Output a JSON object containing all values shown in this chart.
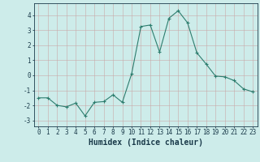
{
  "x": [
    0,
    1,
    2,
    3,
    4,
    5,
    6,
    7,
    8,
    9,
    10,
    11,
    12,
    13,
    14,
    15,
    16,
    17,
    18,
    19,
    20,
    21,
    22,
    23
  ],
  "y": [
    -1.5,
    -1.5,
    -2.0,
    -2.1,
    -1.85,
    -2.7,
    -1.8,
    -1.75,
    -1.3,
    -1.8,
    0.1,
    3.25,
    3.35,
    1.55,
    3.8,
    4.3,
    3.5,
    1.5,
    0.75,
    -0.05,
    -0.1,
    -0.35,
    -0.9,
    -1.1
  ],
  "line_color": "#2d7d6e",
  "marker_color": "#2d7d6e",
  "bg_color": "#cdecea",
  "grid_color_major": "#c8a8a8",
  "grid_color_minor": "#dfc8c8",
  "xlabel": "Humidex (Indice chaleur)",
  "xlim": [
    -0.5,
    23.5
  ],
  "ylim": [
    -3.4,
    4.8
  ],
  "yticks": [
    -3,
    -2,
    -1,
    0,
    1,
    2,
    3,
    4
  ],
  "xticks": [
    0,
    1,
    2,
    3,
    4,
    5,
    6,
    7,
    8,
    9,
    10,
    11,
    12,
    13,
    14,
    15,
    16,
    17,
    18,
    19,
    20,
    21,
    22,
    23
  ],
  "xtick_labels": [
    "0",
    "1",
    "2",
    "3",
    "4",
    "5",
    "6",
    "7",
    "8",
    "9",
    "10",
    "11",
    "12",
    "13",
    "14",
    "15",
    "16",
    "17",
    "18",
    "19",
    "20",
    "21",
    "22",
    "23"
  ],
  "font_color": "#1a3a4a",
  "tick_fontsize": 5.5,
  "label_fontsize": 7.0
}
